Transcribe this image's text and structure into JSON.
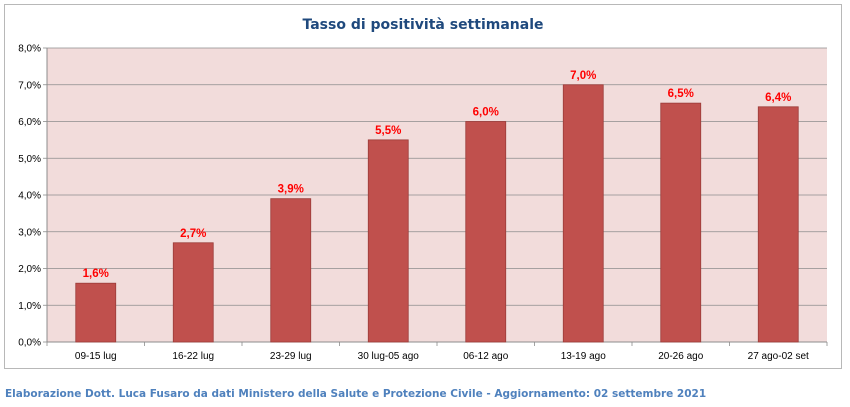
{
  "colors": {
    "bar": "#c0504d",
    "bar_border": "#9b3b38",
    "plot_background": "#f2dcdb",
    "data_label": "#ff0000",
    "title": "#1f497d",
    "footer": "#4f81bd"
  },
  "chart_data": {
    "type": "bar",
    "title": "Tasso di positività settimanale",
    "xlabel": "",
    "ylabel": "",
    "categories": [
      "09-15 lug",
      "16-22 lug",
      "23-29 lug",
      "30 lug-05 ago",
      "06-12 ago",
      "13-19 ago",
      "20-26 ago",
      "27 ago-02 set"
    ],
    "values": [
      1.6,
      2.7,
      3.9,
      5.5,
      6.0,
      7.0,
      6.5,
      6.4
    ],
    "data_labels": [
      "1,6%",
      "2,7%",
      "3,9%",
      "5,5%",
      "6,0%",
      "7,0%",
      "6,5%",
      "6,4%"
    ],
    "ylim": [
      0,
      8
    ],
    "yticks": [
      0,
      1,
      2,
      3,
      4,
      5,
      6,
      7,
      8
    ],
    "ytick_labels": [
      "0,0%",
      "1,0%",
      "2,0%",
      "3,0%",
      "4,0%",
      "5,0%",
      "6,0%",
      "7,0%",
      "8,0%"
    ],
    "grid": true,
    "legend": "none"
  },
  "footer": {
    "credit": "Elaborazione Dott. Luca Fusaro da dati Ministero della Salute e Protezione Civile - Aggiornamento: 02 settembre 2021"
  }
}
